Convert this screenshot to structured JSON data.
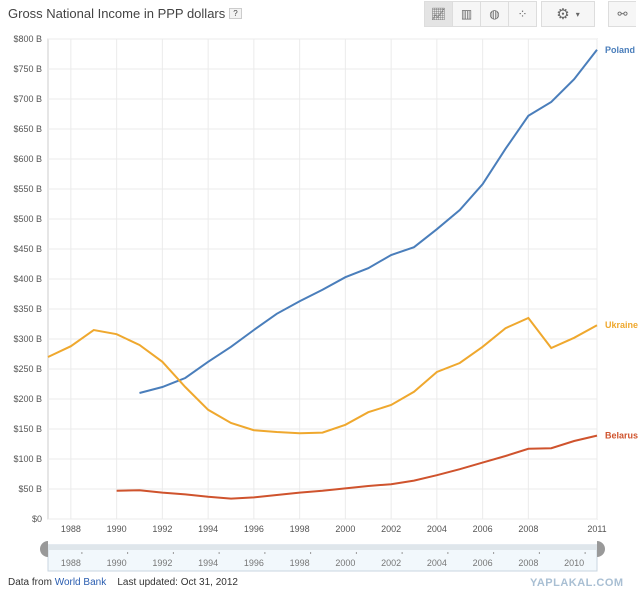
{
  "title": "Gross National Income in PPP dollars",
  "help_label": "?",
  "toolbar": {
    "views": [
      "line-chart-icon",
      "bar-chart-icon",
      "map-icon",
      "scatter-icon"
    ],
    "settings": "gear-icon",
    "link": "link-icon"
  },
  "footer": {
    "prefix": "Data from",
    "source": "World Bank",
    "updated": "Last updated: Oct 31, 2012"
  },
  "watermark": "YAPLAKAL.COM",
  "chart_data": {
    "type": "line",
    "title": "Gross National Income in PPP dollars",
    "xlim": [
      1987,
      2011
    ],
    "ylim": [
      0,
      800
    ],
    "grid": true,
    "y_ticks": [
      "$0",
      "$50 B",
      "$100 B",
      "$150 B",
      "$200 B",
      "$250 B",
      "$300 B",
      "$350 B",
      "$400 B",
      "$450 B",
      "$500 B",
      "$550 B",
      "$600 B",
      "$650 B",
      "$700 B",
      "$750 B",
      "$800 B"
    ],
    "x_ticks": [
      "1988",
      "1990",
      "1992",
      "1994",
      "1996",
      "1998",
      "2000",
      "2002",
      "2004",
      "2006",
      "2008",
      "2011"
    ],
    "slider_ticks": [
      "1988",
      "1990",
      "1992",
      "1994",
      "1996",
      "1998",
      "2000",
      "2002",
      "2004",
      "2006",
      "2008",
      "2010"
    ],
    "legend_placement": "right, at line ends",
    "series": [
      {
        "name": "Poland",
        "color": "#4a7ebb",
        "x": [
          1991,
          1992,
          1993,
          1994,
          1995,
          1996,
          1997,
          1998,
          1999,
          2000,
          2001,
          2002,
          2003,
          2004,
          2005,
          2006,
          2007,
          2008,
          2009,
          2010,
          2011
        ],
        "values": [
          210,
          220,
          235,
          262,
          287,
          315,
          342,
          363,
          382,
          403,
          418,
          440,
          453,
          483,
          515,
          558,
          617,
          672,
          695,
          733,
          782
        ]
      },
      {
        "name": "Ukraine",
        "color": "#efa82e",
        "x": [
          1987,
          1988,
          1989,
          1990,
          1991,
          1992,
          1993,
          1994,
          1995,
          1996,
          1997,
          1998,
          1999,
          2000,
          2001,
          2002,
          2003,
          2004,
          2005,
          2006,
          2007,
          2008,
          2009,
          2010,
          2011
        ],
        "values": [
          270,
          288,
          315,
          308,
          290,
          262,
          220,
          182,
          160,
          148,
          145,
          143,
          144,
          157,
          178,
          190,
          212,
          245,
          260,
          287,
          318,
          335,
          285,
          302,
          323
        ]
      },
      {
        "name": "Belarus",
        "color": "#cf532d",
        "x": [
          1990,
          1991,
          1992,
          1993,
          1994,
          1995,
          1996,
          1997,
          1998,
          1999,
          2000,
          2001,
          2002,
          2003,
          2004,
          2005,
          2006,
          2007,
          2008,
          2009,
          2010,
          2011
        ],
        "values": [
          47,
          48,
          44,
          41,
          37,
          34,
          36,
          40,
          44,
          47,
          51,
          55,
          58,
          64,
          73,
          83,
          94,
          105,
          117,
          118,
          130,
          139
        ]
      }
    ]
  }
}
